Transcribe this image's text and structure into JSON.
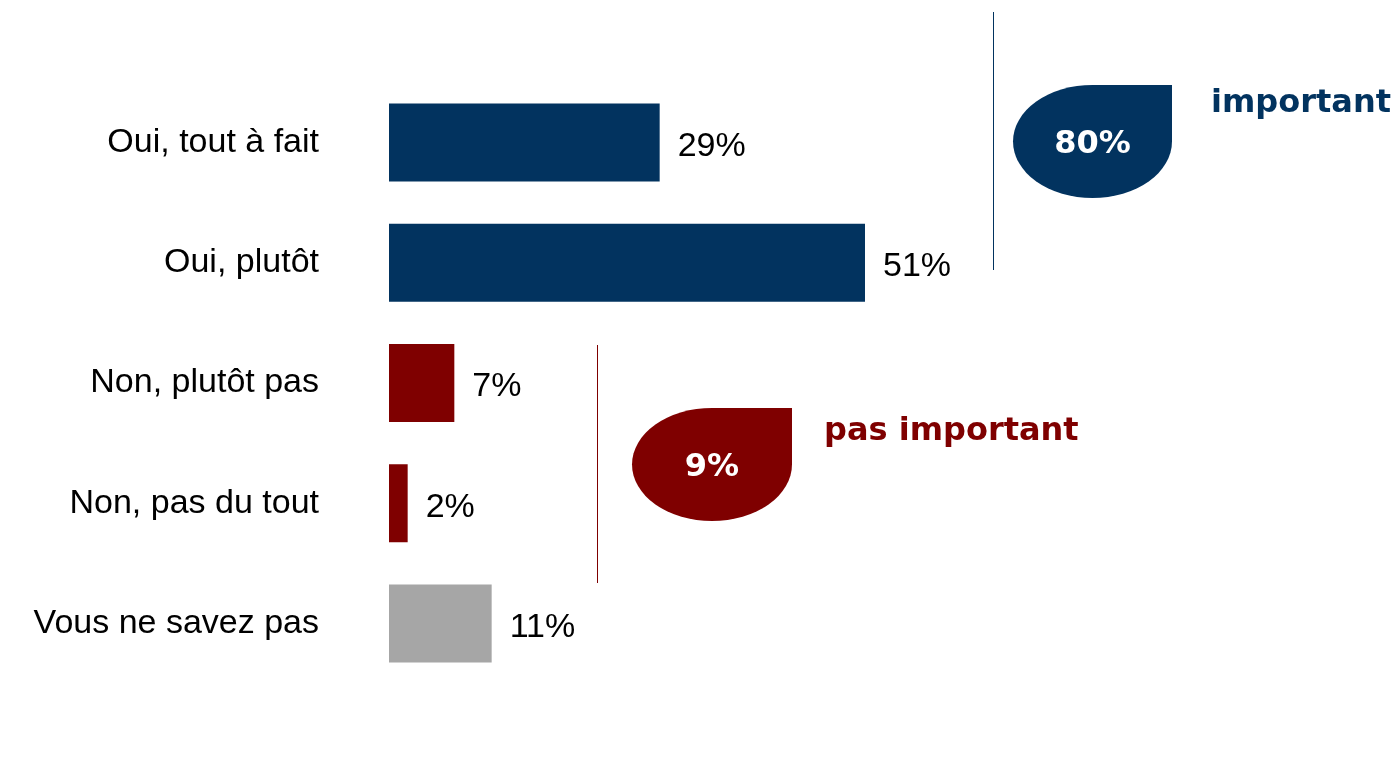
{
  "chart_data": {
    "type": "bar",
    "orientation": "horizontal",
    "categories": [
      "Oui, tout à fait",
      "Oui, plutôt",
      "Non, plutôt pas",
      "Non, pas du tout",
      "Vous ne savez pas"
    ],
    "values": [
      29,
      51,
      7,
      2,
      11
    ],
    "value_labels": [
      "29%",
      "51%",
      "7%",
      "2%",
      "11%"
    ],
    "colors": [
      "#02335f",
      "#02335f",
      "#7f0000",
      "#7f0000",
      "#a6a6a6"
    ],
    "legend": false,
    "annotations": [
      "80%",
      "important",
      "9%",
      "pas important"
    ]
  }
}
